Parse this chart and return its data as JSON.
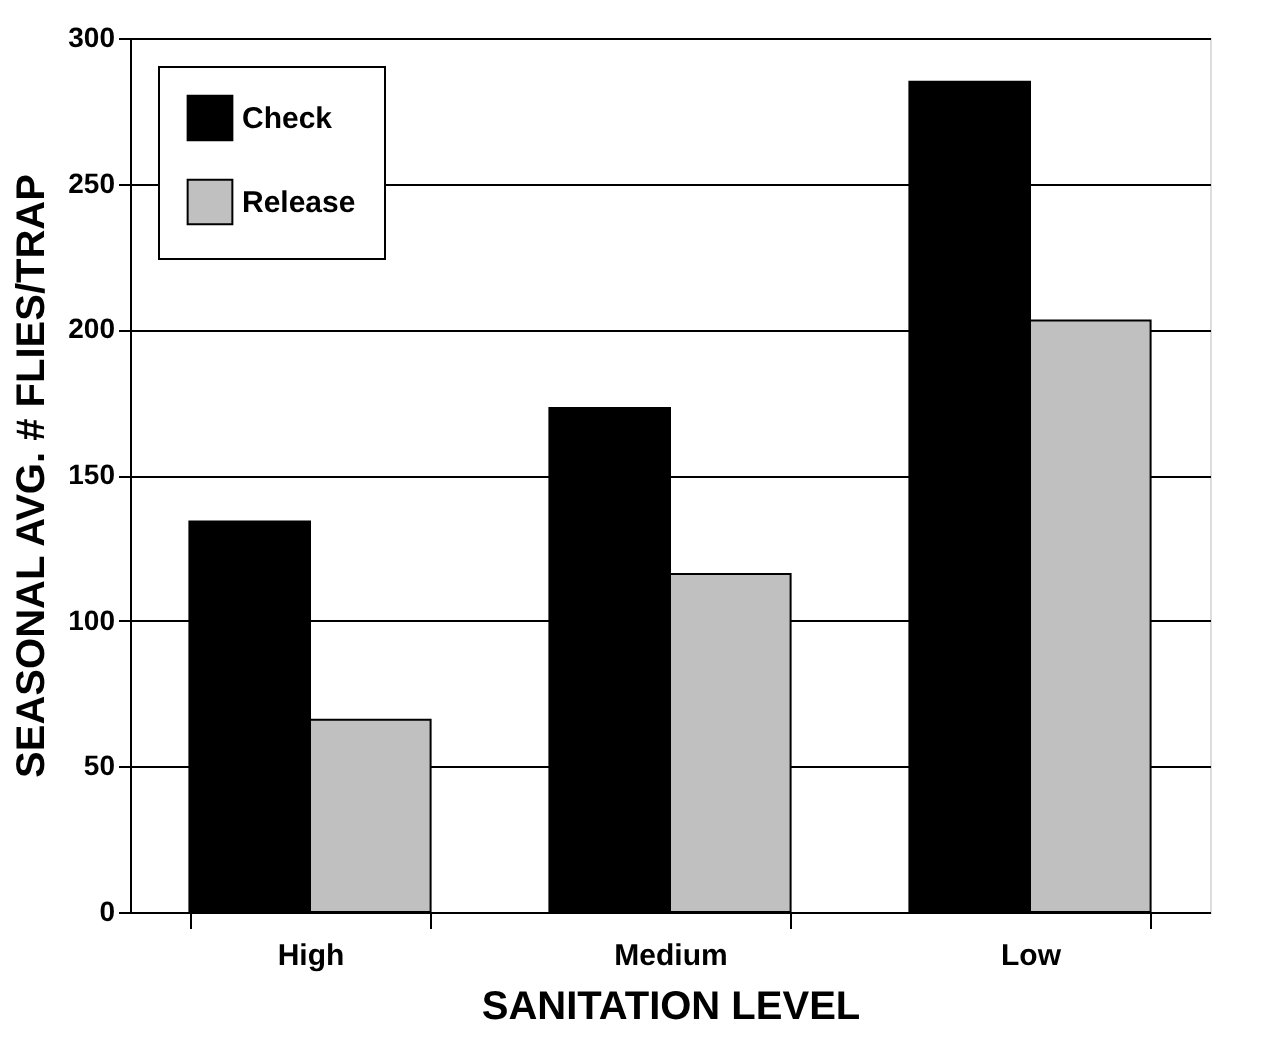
{
  "chart_data": {
    "type": "bar",
    "xlabel": "SANITATION LEVEL",
    "ylabel": "SEASONAL AVG. # FLIES/TRAP",
    "categories": [
      "High",
      "Medium",
      "Low"
    ],
    "series": [
      {
        "name": "Check",
        "color": "#000000",
        "values": [
          134,
          173,
          285
        ]
      },
      {
        "name": "Release",
        "color": "#c0c0c0",
        "values": [
          66,
          116,
          203
        ]
      }
    ],
    "ylim": [
      0,
      300
    ],
    "yticks": [
      0,
      50,
      100,
      150,
      200,
      250,
      300
    ],
    "grid": "y",
    "legend": "top left"
  }
}
